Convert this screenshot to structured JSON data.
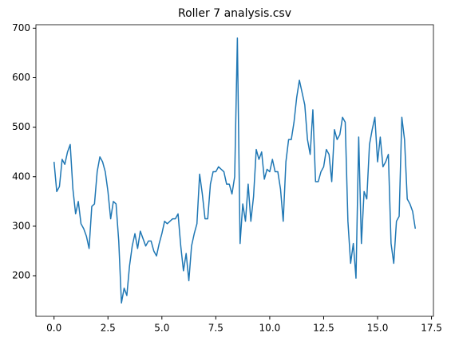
{
  "chart_data": {
    "type": "line",
    "title": "Roller 7 analysis.csv",
    "x": [
      0,
      0.125,
      0.25,
      0.375,
      0.5,
      0.625,
      0.75,
      0.875,
      1,
      1.125,
      1.25,
      1.375,
      1.5,
      1.625,
      1.75,
      1.875,
      2,
      2.125,
      2.25,
      2.375,
      2.5,
      2.625,
      2.75,
      2.875,
      3,
      3.125,
      3.25,
      3.375,
      3.5,
      3.625,
      3.75,
      3.875,
      4,
      4.125,
      4.25,
      4.375,
      4.5,
      4.625,
      4.75,
      4.875,
      5,
      5.125,
      5.25,
      5.375,
      5.5,
      5.625,
      5.75,
      5.875,
      6,
      6.125,
      6.25,
      6.375,
      6.5,
      6.625,
      6.75,
      6.875,
      7,
      7.125,
      7.25,
      7.375,
      7.5,
      7.625,
      7.75,
      7.875,
      8,
      8.125,
      8.25,
      8.375,
      8.5,
      8.625,
      8.75,
      8.875,
      9,
      9.125,
      9.25,
      9.375,
      9.5,
      9.625,
      9.75,
      9.875,
      10,
      10.125,
      10.25,
      10.375,
      10.5,
      10.625,
      10.75,
      10.875,
      11,
      11.125,
      11.25,
      11.375,
      11.5,
      11.625,
      11.75,
      11.875,
      12,
      12.125,
      12.25,
      12.375,
      12.5,
      12.625,
      12.75,
      12.875,
      13,
      13.125,
      13.25,
      13.375,
      13.5,
      13.625,
      13.75,
      13.875,
      14,
      14.125,
      14.25,
      14.375,
      14.5,
      14.625,
      14.75,
      14.875,
      15,
      15.125,
      15.25,
      15.375,
      15.5,
      15.625,
      15.75,
      15.875,
      16,
      16.125,
      16.25,
      16.375,
      16.5,
      16.625,
      16.75
    ],
    "series": [
      {
        "color": "#1f77b4",
        "values": [
          430,
          370,
          380,
          435,
          425,
          450,
          465,
          375,
          325,
          350,
          305,
          295,
          280,
          255,
          340,
          345,
          410,
          440,
          430,
          410,
          370,
          315,
          350,
          345,
          270,
          145,
          175,
          160,
          220,
          260,
          285,
          255,
          290,
          275,
          260,
          270,
          270,
          250,
          240,
          265,
          285,
          310,
          305,
          310,
          315,
          315,
          325,
          260,
          210,
          245,
          190,
          260,
          285,
          305,
          405,
          365,
          315,
          315,
          385,
          410,
          410,
          420,
          415,
          410,
          385,
          385,
          365,
          400,
          680,
          265,
          345,
          310,
          385,
          310,
          360,
          455,
          435,
          450,
          395,
          415,
          410,
          435,
          410,
          410,
          375,
          310,
          430,
          475,
          475,
          510,
          560,
          595,
          570,
          545,
          475,
          445,
          535,
          390,
          390,
          410,
          420,
          455,
          445,
          390,
          495,
          475,
          485,
          520,
          510,
          310,
          225,
          265,
          195,
          480,
          265,
          370,
          355,
          465,
          495,
          520,
          430,
          480,
          420,
          430,
          445,
          265,
          225,
          310,
          320,
          520,
          475,
          355,
          345,
          330,
          295
        ]
      }
    ],
    "xlim": [
      -0.84,
      17.59
    ],
    "ylim": [
      118,
      707
    ],
    "xticks": [
      {
        "value": 0,
        "label": "0.0"
      },
      {
        "value": 2.5,
        "label": "2.5"
      },
      {
        "value": 5,
        "label": "5.0"
      },
      {
        "value": 7.5,
        "label": "7.5"
      },
      {
        "value": 10,
        "label": "10.0"
      },
      {
        "value": 12.5,
        "label": "12.5"
      },
      {
        "value": 15,
        "label": "15.0"
      },
      {
        "value": 17.5,
        "label": "17.5"
      }
    ],
    "yticks": [
      200,
      300,
      400,
      500,
      600,
      700
    ],
    "grid": false
  }
}
